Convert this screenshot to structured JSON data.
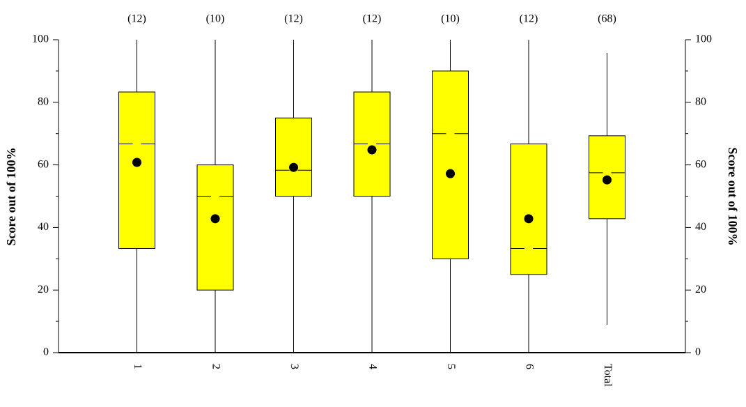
{
  "chart_data": {
    "type": "box",
    "y_label": "Score out of 100%",
    "y2_label": "Score out of 100%",
    "categories": [
      "1",
      "2",
      "3",
      "4",
      "5",
      "6",
      "Total"
    ],
    "counts": [
      12,
      10,
      12,
      12,
      10,
      12,
      68
    ],
    "count_labels": [
      "(12)",
      "(10)",
      "(12)",
      "(12)",
      "(10)",
      "(12)",
      "(68)"
    ],
    "min": [
      0,
      0,
      0,
      0,
      0,
      0,
      8.9
    ],
    "q1": [
      33.3,
      20,
      50,
      50,
      30,
      25,
      42.8
    ],
    "median": [
      66.7,
      50,
      58.3,
      66.7,
      70,
      33.3,
      57.5
    ],
    "q3": [
      83.3,
      60,
      75,
      83.3,
      90,
      66.7,
      69.3
    ],
    "max": [
      100,
      100,
      100,
      100,
      100,
      100,
      95.8
    ],
    "mean": [
      60.8,
      42.8,
      59.2,
      64.8,
      57.2,
      42.8,
      55.2
    ],
    "color": "#ffff00",
    "ylim": [
      0,
      100
    ],
    "yticks": [
      0,
      20,
      40,
      60,
      80,
      100
    ],
    "minor_yticks": [
      10,
      30,
      50,
      70,
      90
    ],
    "y2lim": [
      0,
      100
    ],
    "y2ticks": [
      0,
      20,
      40,
      60,
      80,
      100
    ]
  }
}
